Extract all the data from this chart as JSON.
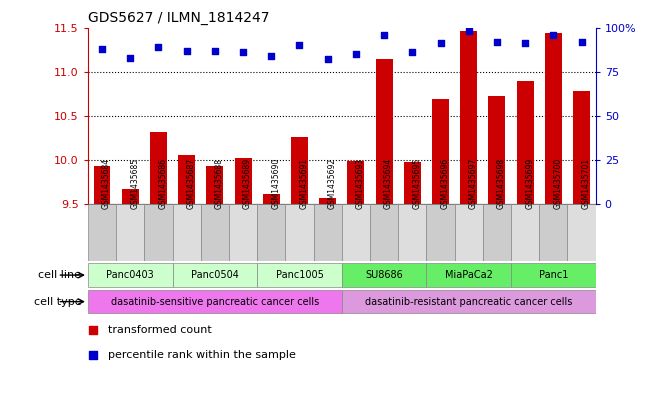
{
  "title": "GDS5627 / ILMN_1814247",
  "samples": [
    "GSM1435684",
    "GSM1435685",
    "GSM1435686",
    "GSM1435687",
    "GSM1435688",
    "GSM1435689",
    "GSM1435690",
    "GSM1435691",
    "GSM1435692",
    "GSM1435693",
    "GSM1435694",
    "GSM1435695",
    "GSM1435696",
    "GSM1435697",
    "GSM1435698",
    "GSM1435699",
    "GSM1435700",
    "GSM1435701"
  ],
  "transformed_counts": [
    9.93,
    9.67,
    10.32,
    10.06,
    9.93,
    10.02,
    9.62,
    10.26,
    9.57,
    9.99,
    11.14,
    9.98,
    10.69,
    11.46,
    10.73,
    10.9,
    11.44,
    10.78
  ],
  "percentile_ranks": [
    88,
    83,
    89,
    87,
    87,
    86,
    84,
    90,
    82,
    85,
    96,
    86,
    91,
    98,
    92,
    91,
    96,
    92
  ],
  "ylim": [
    9.5,
    11.5
  ],
  "yticks": [
    9.5,
    10.0,
    10.5,
    11.0,
    11.5
  ],
  "right_yticks": [
    0,
    25,
    50,
    75,
    100
  ],
  "right_ylim": [
    0,
    100
  ],
  "bar_color": "#cc0000",
  "dot_color": "#0000cc",
  "cell_lines": [
    {
      "name": "Panc0403",
      "start": 0,
      "end": 3,
      "color": "#ccffcc"
    },
    {
      "name": "Panc0504",
      "start": 3,
      "end": 6,
      "color": "#ccffcc"
    },
    {
      "name": "Panc1005",
      "start": 6,
      "end": 9,
      "color": "#ccffcc"
    },
    {
      "name": "SU8686",
      "start": 9,
      "end": 12,
      "color": "#66ee66"
    },
    {
      "name": "MiaPaCa2",
      "start": 12,
      "end": 15,
      "color": "#66ee66"
    },
    {
      "name": "Panc1",
      "start": 15,
      "end": 18,
      "color": "#66ee66"
    }
  ],
  "cell_types": [
    {
      "name": "dasatinib-sensitive pancreatic cancer cells",
      "start": 0,
      "end": 9,
      "color": "#ee77ee"
    },
    {
      "name": "dasatinib-resistant pancreatic cancer cells",
      "start": 9,
      "end": 18,
      "color": "#dd99dd"
    }
  ],
  "legend_items": [
    {
      "label": "transformed count",
      "color": "#cc0000",
      "marker": "s"
    },
    {
      "label": "percentile rank within the sample",
      "color": "#0000cc",
      "marker": "s"
    }
  ],
  "left_axis_color": "#cc0000",
  "right_axis_color": "#0000cc",
  "bg_color": "#ffffff",
  "grid_color": "#000000",
  "cell_line_label": "cell line",
  "cell_type_label": "cell type",
  "sample_box_color": "#cccccc",
  "sample_box_alt_color": "#dddddd"
}
